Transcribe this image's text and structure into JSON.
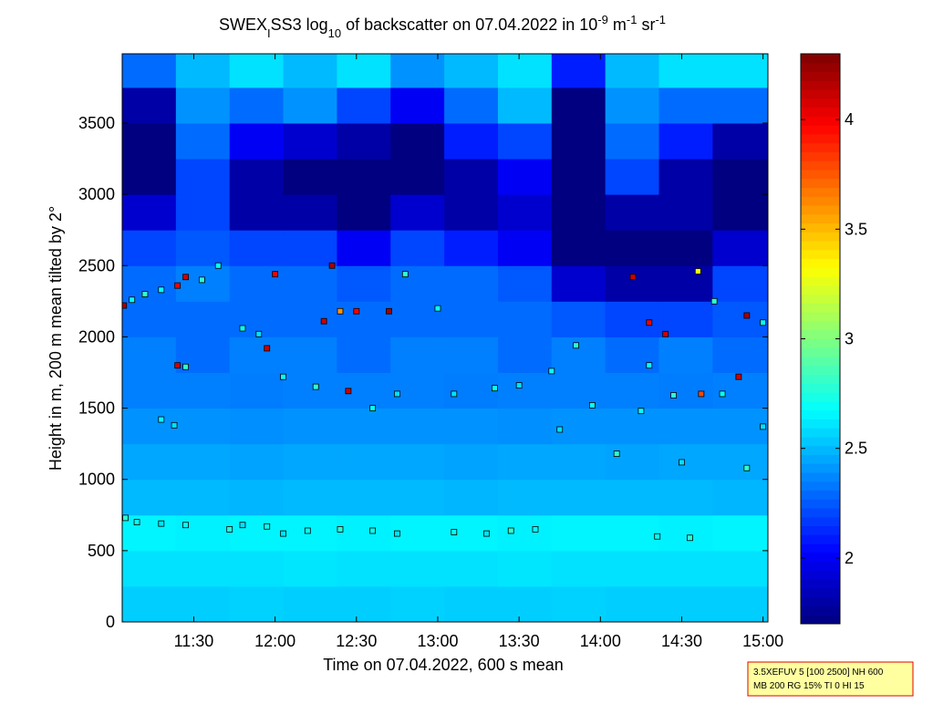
{
  "chart_data": {
    "type": "heatmap",
    "title": [
      "SWEX",
      "I",
      "SS3 log",
      "10",
      " of backscatter on 07.04.2022 in 10",
      "-9",
      " m",
      "-1",
      " sr",
      "-1"
    ],
    "x_label": "Time on 07.04.2022, 600 s mean",
    "y_label": "Height in m, 200 m mean tilted by 2°",
    "xlim": [
      11.06,
      15.03
    ],
    "xticks": [
      {
        "value": 11.5,
        "label": "11:30"
      },
      {
        "value": 12,
        "label": "12:00"
      },
      {
        "value": 12.5,
        "label": "12:30"
      },
      {
        "value": 13,
        "label": "13:00"
      },
      {
        "value": 13.5,
        "label": "13:30"
      },
      {
        "value": 14,
        "label": "14:00"
      },
      {
        "value": 14.5,
        "label": "14:30"
      },
      {
        "value": 15,
        "label": "15:00"
      }
    ],
    "ylim": [
      0,
      3986
    ],
    "yticks": [
      0,
      500,
      1000,
      1500,
      2000,
      2500,
      3000,
      3500
    ],
    "clim": [
      1.7,
      4.3
    ],
    "cticks": [
      2,
      2.5,
      3,
      3.5,
      4
    ],
    "colormap": "jet",
    "xbins": [
      11.06,
      11.39,
      11.72,
      12.05,
      12.38,
      12.71,
      13.04,
      13.37,
      13.7,
      14.03,
      14.36,
      14.69,
      15.03
    ],
    "ybins": [
      0,
      250,
      500,
      750,
      1000,
      1250,
      1500,
      1750,
      2000,
      2250,
      2500,
      2750,
      3000,
      3250,
      3500,
      3750,
      4000
    ],
    "z": [
      [
        2.55,
        2.55,
        2.56,
        2.55,
        2.55,
        2.56,
        2.55,
        2.55,
        2.56,
        2.55,
        2.55,
        2.55
      ],
      [
        2.6,
        2.6,
        2.6,
        2.61,
        2.6,
        2.6,
        2.6,
        2.61,
        2.6,
        2.6,
        2.6,
        2.6
      ],
      [
        2.65,
        2.64,
        2.65,
        2.65,
        2.64,
        2.65,
        2.65,
        2.64,
        2.65,
        2.65,
        2.64,
        2.65
      ],
      [
        2.5,
        2.5,
        2.49,
        2.5,
        2.5,
        2.5,
        2.49,
        2.5,
        2.5,
        2.5,
        2.5,
        2.49
      ],
      [
        2.45,
        2.45,
        2.44,
        2.45,
        2.45,
        2.45,
        2.44,
        2.45,
        2.45,
        2.44,
        2.45,
        2.45
      ],
      [
        2.4,
        2.4,
        2.39,
        2.4,
        2.4,
        2.4,
        2.4,
        2.39,
        2.4,
        2.4,
        2.4,
        2.4
      ],
      [
        2.35,
        2.35,
        2.34,
        2.35,
        2.35,
        2.35,
        2.34,
        2.35,
        2.35,
        2.35,
        2.34,
        2.35
      ],
      [
        2.35,
        2.3,
        2.35,
        2.35,
        2.3,
        2.35,
        2.35,
        2.3,
        2.35,
        2.3,
        2.35,
        2.3
      ],
      [
        2.3,
        2.3,
        2.3,
        2.3,
        2.3,
        2.3,
        2.3,
        2.3,
        2.25,
        2.2,
        2.2,
        2.25
      ],
      [
        2.3,
        2.35,
        2.3,
        2.3,
        2.25,
        2.3,
        2.3,
        2.25,
        1.9,
        1.8,
        1.8,
        2.2
      ],
      [
        2.2,
        2.25,
        2.2,
        2.2,
        2.0,
        2.2,
        2.1,
        2.0,
        1.7,
        1.7,
        1.7,
        1.9
      ],
      [
        1.9,
        2.2,
        1.8,
        1.8,
        1.7,
        1.9,
        1.8,
        1.9,
        1.7,
        1.8,
        1.8,
        1.7
      ],
      [
        1.7,
        2.2,
        1.8,
        1.7,
        1.7,
        1.7,
        1.8,
        2.0,
        1.7,
        2.2,
        1.8,
        1.7
      ],
      [
        1.7,
        2.3,
        2.0,
        1.9,
        1.8,
        1.7,
        2.1,
        2.2,
        1.7,
        2.3,
        2.1,
        1.8
      ],
      [
        1.8,
        2.4,
        2.3,
        2.4,
        2.2,
        2.0,
        2.3,
        2.5,
        1.7,
        2.4,
        2.3,
        2.3
      ],
      [
        2.3,
        2.5,
        2.6,
        2.5,
        2.6,
        2.4,
        2.5,
        2.6,
        2.1,
        2.5,
        2.6,
        2.6
      ]
    ],
    "points": {
      "x": [
        11.07,
        11.12,
        11.2,
        11.3,
        11.4,
        11.45,
        11.55,
        11.65,
        11.4,
        11.45,
        11.3,
        11.38,
        11.08,
        11.15,
        11.3,
        11.45,
        11.72,
        11.8,
        11.95,
        12.05,
        12.2,
        12.4,
        12.6,
        12.75,
        13.1,
        13.3,
        13.45,
        13.6,
        11.8,
        11.9,
        11.95,
        12.0,
        12.35,
        12.3,
        12.5,
        12.7,
        12.4,
        12.05,
        12.25,
        12.45,
        12.6,
        12.75,
        12.8,
        13.0,
        13.1,
        13.35,
        13.5,
        13.7,
        13.85,
        13.95,
        13.75,
        14.1,
        14.25,
        14.45,
        14.4,
        14.3,
        14.2,
        14.35,
        14.55,
        14.6,
        14.7,
        14.9,
        15.0,
        14.85,
        14.75,
        14.9,
        15.0,
        14.5,
        14.62,
        14.3
      ],
      "y": [
        2220,
        2260,
        2300,
        2330,
        2360,
        2420,
        2400,
        2500,
        1800,
        1790,
        1420,
        1380,
        730,
        700,
        690,
        680,
        650,
        680,
        670,
        620,
        640,
        650,
        640,
        620,
        630,
        620,
        640,
        650,
        2060,
        2020,
        1920,
        2440,
        2500,
        2110,
        2180,
        2180,
        2180,
        1720,
        1650,
        1620,
        1500,
        1600,
        2440,
        2200,
        1600,
        1640,
        1660,
        1760,
        1940,
        1520,
        1350,
        1180,
        1480,
        1590,
        2020,
        2100,
        2420,
        600,
        590,
        2460,
        2250,
        2150,
        2100,
        1720,
        1600,
        1080,
        1370,
        1120,
        1600,
        1800
      ],
      "values": [
        4.2,
        2.7,
        2.8,
        2.7,
        4.0,
        4.1,
        2.8,
        2.7,
        4.1,
        2.8,
        2.7,
        2.6,
        2.8,
        2.7,
        2.6,
        2.7,
        2.8,
        2.6,
        2.7,
        2.6,
        2.7,
        2.8,
        2.7,
        2.6,
        2.7,
        2.6,
        2.8,
        2.7,
        2.7,
        2.6,
        4.1,
        4.0,
        4.2,
        4.1,
        4.0,
        4.2,
        3.6,
        2.7,
        2.8,
        4.1,
        2.7,
        2.6,
        2.8,
        2.7,
        2.6,
        2.7,
        2.6,
        2.7,
        2.8,
        2.7,
        2.6,
        2.8,
        2.7,
        2.8,
        4.1,
        4.0,
        4.1,
        2.7,
        2.8,
        3.3,
        2.8,
        4.2,
        2.7,
        4.1,
        2.7,
        2.8,
        2.6,
        2.6,
        3.8,
        2.7
      ]
    },
    "note": [
      "3.5XEFUV 5 [100 2500] NH 600",
      "MB 200 RG 15% TI 0 HI 15"
    ]
  }
}
